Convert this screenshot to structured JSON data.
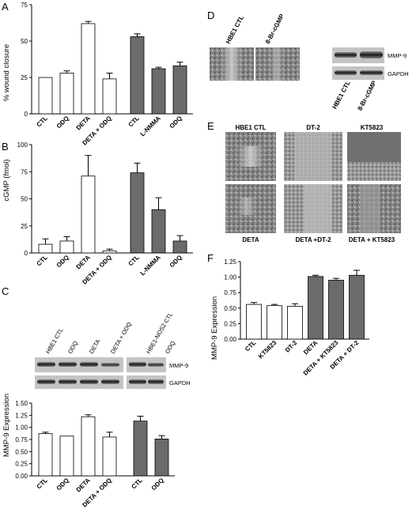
{
  "panels": {
    "a": {
      "letter": "A",
      "ylabel": "% wound closure"
    },
    "b": {
      "letter": "B",
      "ylabel": "cGMP (fmol)"
    },
    "c": {
      "letter": "C",
      "ylabel": "MMP-9 Expression",
      "blot_lanes": [
        "HBE1 CTL",
        "ODQ",
        "DETA",
        "DETA + ODQ",
        "HBE1-NOS2 CTL",
        "ODQ"
      ],
      "blot_rows": [
        "MMP-9",
        "GAPDH"
      ]
    },
    "d": {
      "letter": "D",
      "image_labels": [
        "HBE1 CTL",
        "8-Br-cGMP"
      ],
      "blot_lanes": [
        "HBE1 CTL",
        "8-Br-cGMP"
      ],
      "blot_rows": [
        "MMP-9",
        "GAPDH"
      ]
    },
    "e": {
      "letter": "E",
      "top_labels": [
        "HBE1 CTL",
        "DT-2",
        "KT5823"
      ],
      "bottom_labels": [
        "DETA",
        "DETA +DT-2",
        "DETA + KT5823"
      ]
    },
    "f": {
      "letter": "F",
      "ylabel": "MMP-9 Expression"
    }
  },
  "colors": {
    "open_bar": "#ffffff",
    "filled_bar": "#6b6b6b",
    "axis": "#000000"
  },
  "chart_data": [
    {
      "id": "A",
      "type": "bar",
      "ylabel": "% wound closure",
      "ylim": [
        0,
        75
      ],
      "yticks": [
        "0",
        "25",
        "50",
        "75"
      ],
      "groups": [
        {
          "fill": "open",
          "categories": [
            "CTL",
            "ODQ",
            "DETA",
            "DETA + ODQ"
          ],
          "values": [
            25,
            28,
            62,
            24
          ],
          "errors": [
            0,
            1.5,
            1.5,
            4
          ]
        },
        {
          "fill": "filled",
          "categories": [
            "CTL",
            "L-NMMA",
            "ODQ"
          ],
          "values": [
            53,
            31,
            33
          ],
          "errors": [
            2,
            1,
            2.5
          ]
        }
      ]
    },
    {
      "id": "B",
      "type": "bar",
      "ylabel": "cGMP (fmol)",
      "ylim": [
        0,
        100
      ],
      "yticks": [
        "0",
        "25",
        "50",
        "75",
        "100"
      ],
      "groups": [
        {
          "fill": "open",
          "categories": [
            "CTL",
            "ODQ",
            "DETA",
            "DETA + ODQ"
          ],
          "values": [
            8,
            11,
            71,
            2
          ],
          "errors": [
            5,
            4,
            19,
            1.5
          ]
        },
        {
          "fill": "filled",
          "categories": [
            "CTL",
            "L-NMMA",
            "ODQ"
          ],
          "values": [
            74,
            40,
            11
          ],
          "errors": [
            9,
            11,
            5
          ]
        }
      ]
    },
    {
      "id": "C",
      "type": "bar",
      "ylabel": "MMP-9 Expression",
      "ylim": [
        0,
        1.5
      ],
      "yticks": [
        "0.00",
        "0.25",
        "0.50",
        "0.75",
        "1.00",
        "1.25",
        "1.50"
      ],
      "groups": [
        {
          "fill": "open",
          "categories": [
            "CTL",
            "ODQ",
            "DETA",
            "DETA + ODQ"
          ],
          "values": [
            0.87,
            0.82,
            1.22,
            0.8
          ],
          "errors": [
            0.03,
            0,
            0.04,
            0.1
          ]
        },
        {
          "fill": "filled",
          "categories": [
            "CTL",
            "ODQ"
          ],
          "values": [
            1.13,
            0.76
          ],
          "errors": [
            0.1,
            0.07
          ]
        }
      ]
    },
    {
      "id": "F",
      "type": "bar",
      "ylabel": "MMP-9 Expression",
      "ylim": [
        0,
        1.25
      ],
      "yticks": [
        "0.00",
        "0.25",
        "0.50",
        "0.75",
        "1.00",
        "1.25"
      ],
      "groups": [
        {
          "fill": "open",
          "categories": [
            "CTL",
            "KT5823",
            "DT-2"
          ],
          "values": [
            0.56,
            0.54,
            0.53
          ],
          "errors": [
            0.03,
            0.02,
            0.04
          ]
        },
        {
          "fill": "filled",
          "categories": [
            "DETA",
            "DETA + KT5823",
            "DETA + DT-2"
          ],
          "values": [
            1.01,
            0.95,
            1.03
          ],
          "errors": [
            0.02,
            0.03,
            0.08
          ]
        }
      ]
    }
  ]
}
